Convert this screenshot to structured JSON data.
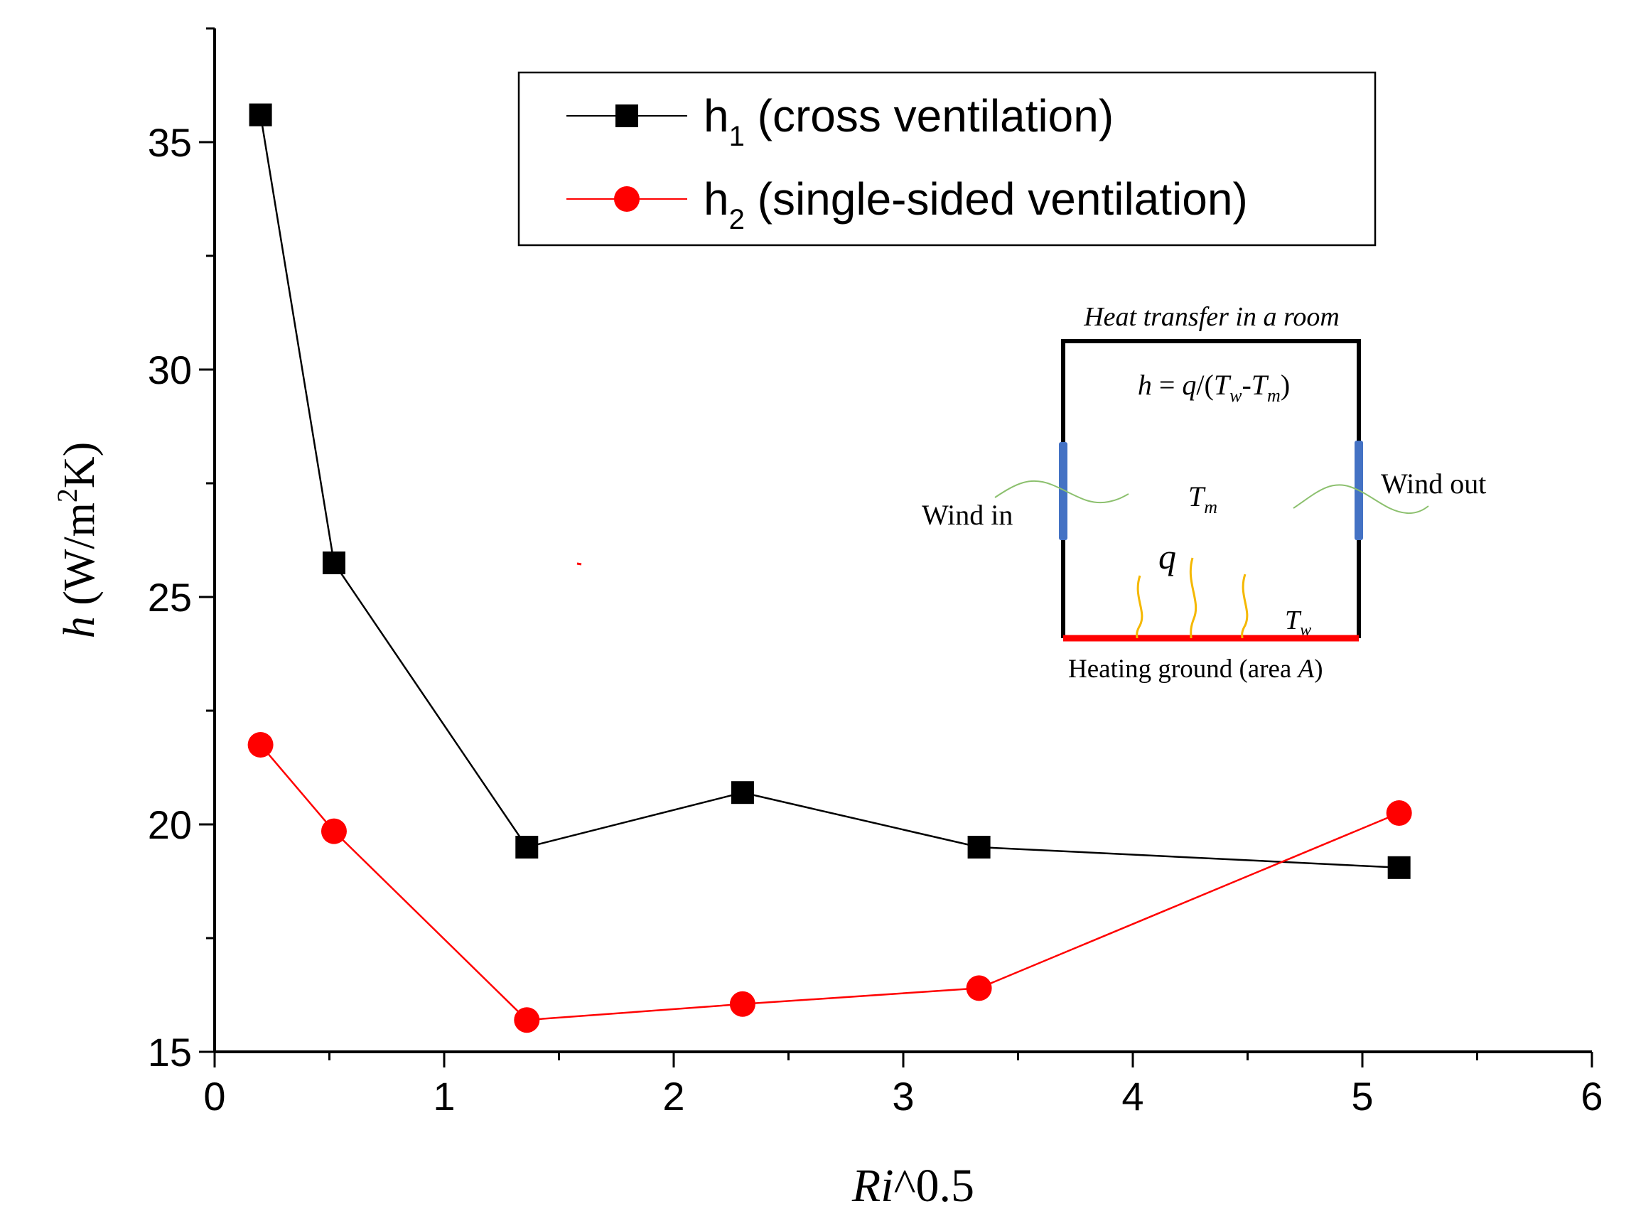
{
  "chart_data": {
    "type": "line",
    "xlabel": "Ri^0.5",
    "ylabel": "h (W/m2K)",
    "xlim": [
      0,
      6
    ],
    "ylim": [
      15,
      37.5
    ],
    "x_ticks": [
      0,
      1,
      2,
      3,
      4,
      5,
      6
    ],
    "y_ticks": [
      15,
      20,
      25,
      30,
      35
    ],
    "tick_labels_x": [
      "0",
      "1",
      "2",
      "3",
      "4",
      "5",
      "6"
    ],
    "tick_labels_y": [
      "15",
      "20",
      "25",
      "30",
      "35"
    ],
    "legend_position": "top-right",
    "series": [
      {
        "name": "h1 (cross ventilation)",
        "label_main": "h",
        "label_sub": "1",
        "label_rest": " (cross ventilation)",
        "color": "#000000",
        "marker": "square",
        "x": [
          0.2,
          0.52,
          1.36,
          2.3,
          3.33,
          5.16
        ],
        "values": [
          35.6,
          25.75,
          19.5,
          20.7,
          19.5,
          19.05
        ]
      },
      {
        "name": "h2 (single-sided ventilation)",
        "label_main": "h",
        "label_sub": "2",
        "label_rest": " (single-sided ventilation)",
        "color": "#ff0000",
        "marker": "circle",
        "x": [
          0.2,
          0.52,
          1.36,
          2.3,
          3.33,
          5.16
        ],
        "values": [
          21.75,
          19.85,
          15.7,
          16.05,
          16.4,
          20.25
        ]
      }
    ],
    "inset": {
      "title": "Heat transfer in a room",
      "formula": "h = q/(Tw-Tm)",
      "wind_in": "Wind in",
      "wind_out": "Wind out",
      "tm_label": "Tm",
      "q_label": "q",
      "tw_label": "Tw",
      "ground_label": "Heating ground (area A)",
      "colors": {
        "ground": "#ff0000",
        "window": "#4472c4",
        "heat": "#f5b800",
        "wind": "#8cc06e"
      }
    }
  }
}
